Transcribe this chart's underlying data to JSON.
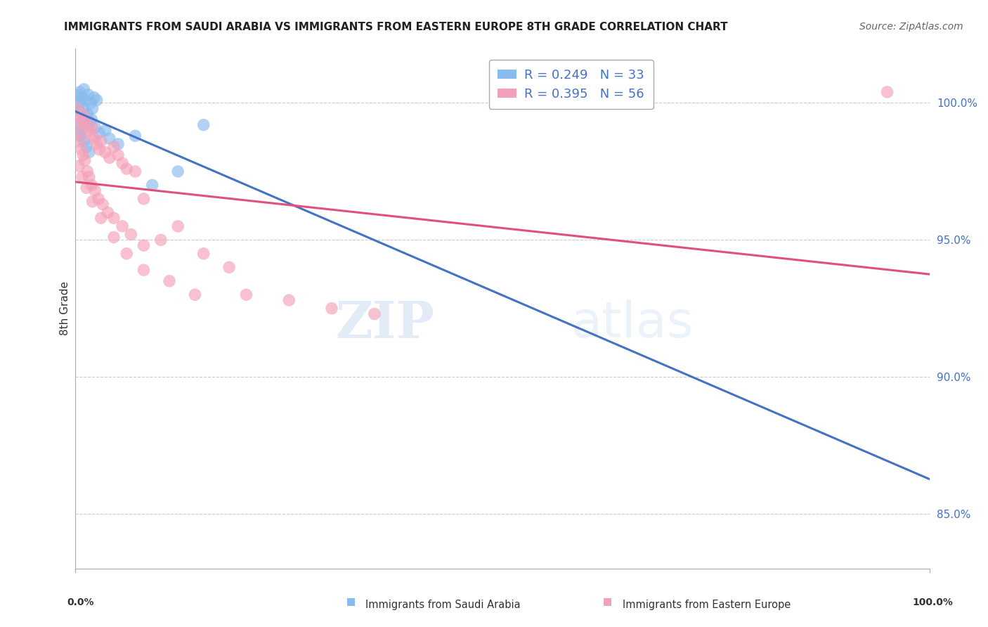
{
  "title": "IMMIGRANTS FROM SAUDI ARABIA VS IMMIGRANTS FROM EASTERN EUROPE 8TH GRADE CORRELATION CHART",
  "source": "Source: ZipAtlas.com",
  "ylabel": "8th Grade",
  "xlim": [
    0,
    100
  ],
  "ylim": [
    83,
    102
  ],
  "yticks": [
    85,
    90,
    95,
    100
  ],
  "ytick_labels": [
    "85.0%",
    "90.0%",
    "95.0%",
    "100.0%"
  ],
  "color_blue": "#88bbee",
  "color_pink": "#f4a0b8",
  "line_blue": "#4472c4",
  "line_pink": "#e0507a",
  "R_blue": 0.249,
  "N_blue": 33,
  "R_pink": 0.395,
  "N_pink": 56,
  "blue_x": [
    0.3,
    0.5,
    0.8,
    1.0,
    1.2,
    1.5,
    1.8,
    2.0,
    2.2,
    2.5,
    0.2,
    0.4,
    0.6,
    0.9,
    1.1,
    1.4,
    1.7,
    1.9,
    2.3,
    2.8,
    3.5,
    4.0,
    5.0,
    7.0,
    9.0,
    12.0,
    15.0,
    0.3,
    0.5,
    0.7,
    1.0,
    1.3,
    1.6
  ],
  "blue_y": [
    100.3,
    100.4,
    100.2,
    100.5,
    100.1,
    100.3,
    100.0,
    99.8,
    100.2,
    100.1,
    99.9,
    99.7,
    100.0,
    99.8,
    99.5,
    99.6,
    99.3,
    99.4,
    99.1,
    98.9,
    99.0,
    98.7,
    98.5,
    98.8,
    97.0,
    97.5,
    99.2,
    99.2,
    98.8,
    99.0,
    98.6,
    98.4,
    98.2
  ],
  "pink_x": [
    0.2,
    0.4,
    0.6,
    0.8,
    1.0,
    1.2,
    1.5,
    1.8,
    2.0,
    2.2,
    2.5,
    2.8,
    3.0,
    3.5,
    4.0,
    4.5,
    5.0,
    5.5,
    6.0,
    7.0,
    0.3,
    0.5,
    0.7,
    0.9,
    1.1,
    1.4,
    1.6,
    1.9,
    2.3,
    2.7,
    3.2,
    3.8,
    4.5,
    5.5,
    6.5,
    8.0,
    10.0,
    12.0,
    15.0,
    18.0,
    0.4,
    0.8,
    1.3,
    2.0,
    3.0,
    4.5,
    6.0,
    8.0,
    11.0,
    14.0,
    20.0,
    25.0,
    30.0,
    35.0,
    8.0,
    95.0
  ],
  "pink_y": [
    99.8,
    99.5,
    99.3,
    99.6,
    99.2,
    99.4,
    99.0,
    98.8,
    99.1,
    98.7,
    98.5,
    98.3,
    98.6,
    98.2,
    98.0,
    98.4,
    98.1,
    97.8,
    97.6,
    97.5,
    98.9,
    98.6,
    98.3,
    98.1,
    97.9,
    97.5,
    97.3,
    97.0,
    96.8,
    96.5,
    96.3,
    96.0,
    95.8,
    95.5,
    95.2,
    94.8,
    95.0,
    95.5,
    94.5,
    94.0,
    97.7,
    97.3,
    96.9,
    96.4,
    95.8,
    95.1,
    94.5,
    93.9,
    93.5,
    93.0,
    93.0,
    92.8,
    92.5,
    92.3,
    96.5,
    100.4
  ]
}
